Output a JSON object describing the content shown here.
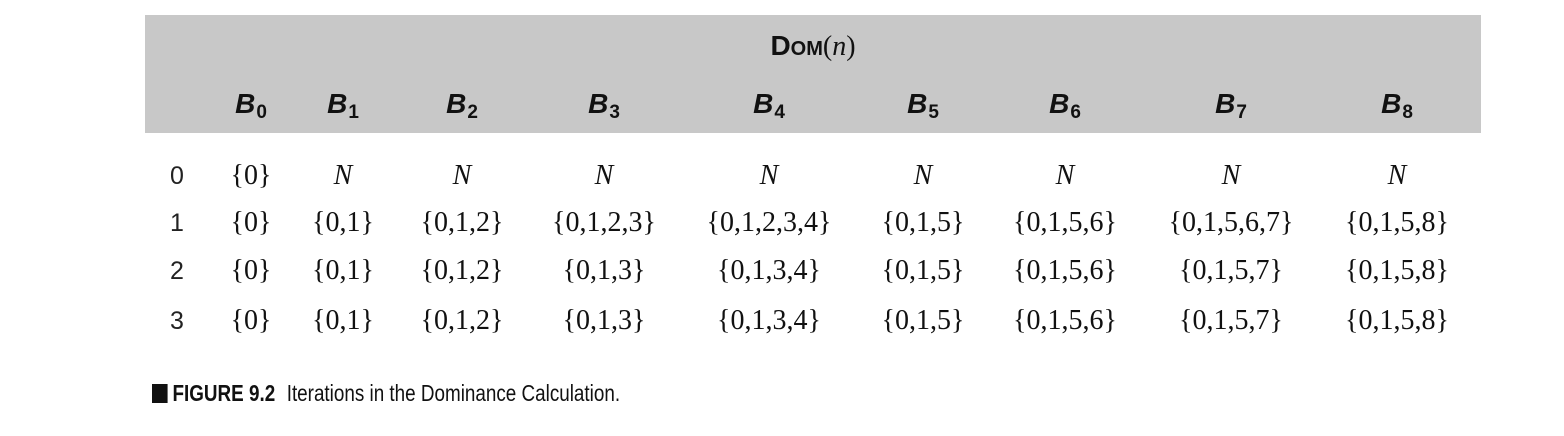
{
  "table": {
    "title_prefix": "Dom",
    "title_open": "(",
    "title_var": "n",
    "title_close": ")",
    "columns": [
      {
        "base": "B",
        "sub": "0"
      },
      {
        "base": "B",
        "sub": "1"
      },
      {
        "base": "B",
        "sub": "2"
      },
      {
        "base": "B",
        "sub": "3"
      },
      {
        "base": "B",
        "sub": "4"
      },
      {
        "base": "B",
        "sub": "5"
      },
      {
        "base": "B",
        "sub": "6"
      },
      {
        "base": "B",
        "sub": "7"
      },
      {
        "base": "B",
        "sub": "8"
      }
    ],
    "rows": [
      {
        "label": "0",
        "cells": [
          "{0}",
          "N",
          "N",
          "N",
          "N",
          "N",
          "N",
          "N",
          "N"
        ]
      },
      {
        "label": "1",
        "cells": [
          "{0}",
          "{0,1}",
          "{0,1,2}",
          "{0,1,2,3}",
          "{0,1,2,3,4}",
          "{0,1,5}",
          "{0,1,5,6}",
          "{0,1,5,6,7}",
          "{0,1,5,8}"
        ]
      },
      {
        "label": "2",
        "cells": [
          "{0}",
          "{0,1}",
          "{0,1,2}",
          "{0,1,3}",
          "{0,1,3,4}",
          "{0,1,5}",
          "{0,1,5,6}",
          "{0,1,5,7}",
          "{0,1,5,8}"
        ]
      },
      {
        "label": "3",
        "cells": [
          "{0}",
          "{0,1}",
          "{0,1,2}",
          "{0,1,3}",
          "{0,1,3,4}",
          "{0,1,5}",
          "{0,1,5,6}",
          "{0,1,5,7}",
          "{0,1,5,8}"
        ]
      }
    ]
  },
  "caption": {
    "label": "FIGURE 9.2",
    "text": "Iterations in the Dominance Calculation."
  }
}
